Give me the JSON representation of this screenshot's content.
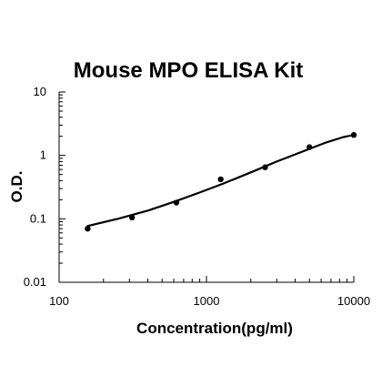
{
  "chart_data": {
    "type": "scatter",
    "title": "Mouse MPO ELISA Kit",
    "xlabel": "Concentration(pg/ml)",
    "ylabel": "O.D.",
    "x_scale": "log",
    "y_scale": "log",
    "xlim": [
      100,
      10000
    ],
    "ylim": [
      0.01,
      10
    ],
    "x_ticks": [
      "100",
      "1000",
      "10000"
    ],
    "y_ticks": [
      "10",
      "1",
      "0.1",
      "0.01"
    ],
    "grid": false,
    "legend": "none",
    "series": [
      {
        "x": [
          156.25,
          312.5,
          625,
          1250,
          2500,
          5000,
          10000
        ],
        "y": [
          0.07,
          0.105,
          0.18,
          0.42,
          0.65,
          1.35,
          2.1
        ]
      }
    ],
    "fit_curve": {
      "x": [
        156.25,
        250,
        400,
        600,
        900,
        1300,
        2000,
        3000,
        4500,
        6500,
        8500,
        10000
      ],
      "y": [
        0.077,
        0.1,
        0.135,
        0.185,
        0.26,
        0.36,
        0.54,
        0.8,
        1.15,
        1.6,
        1.95,
        2.1
      ]
    },
    "colors": {
      "marks": "#000000",
      "axis": "#000000"
    }
  }
}
